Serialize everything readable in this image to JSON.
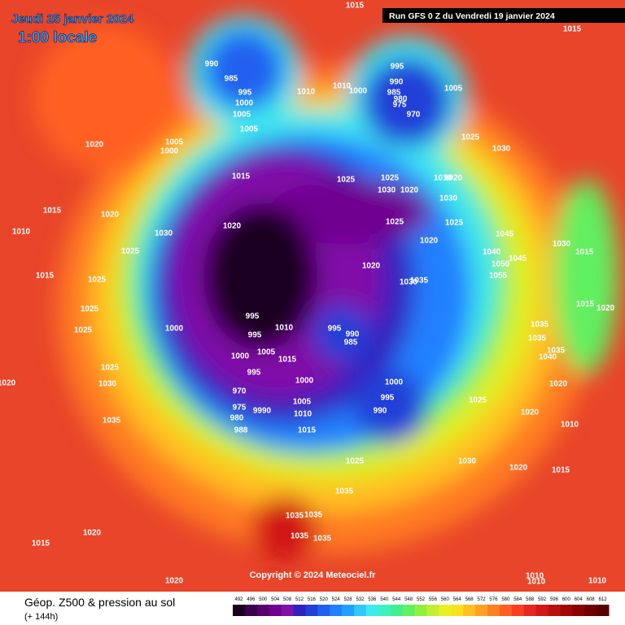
{
  "header": {
    "date": "Jeudi 25 janvier 2024",
    "time": "1:00 locale",
    "run": "Run GFS 0 Z du Vendredi 19 janvier 2024"
  },
  "copyright": "Copyright © 2024 Meteociel.fr",
  "footer": {
    "title": "Géop. Z500 & pression au sol",
    "lead": "(+ 144h)"
  },
  "legend": {
    "ticks": [
      492,
      496,
      500,
      504,
      508,
      512,
      516,
      520,
      524,
      528,
      532,
      536,
      540,
      544,
      548,
      552,
      556,
      560,
      564,
      568,
      572,
      576,
      580,
      584,
      588,
      592,
      596,
      600,
      604,
      608,
      612
    ],
    "colors": [
      "#1a0020",
      "#3a0050",
      "#560070",
      "#700090",
      "#8010a8",
      "#3020c0",
      "#2040d8",
      "#2060f0",
      "#2080ff",
      "#20a0ff",
      "#30c8ff",
      "#40e8f0",
      "#40f0c0",
      "#40f090",
      "#60f060",
      "#90f040",
      "#c0f030",
      "#e8f020",
      "#ffe020",
      "#ffc020",
      "#ffa020",
      "#ff8020",
      "#ff6020",
      "#f84020",
      "#e82820",
      "#d01818",
      "#b81010",
      "#a00808",
      "#880404",
      "#700000",
      "#580000"
    ]
  },
  "pressure_labels": [
    1015,
    1015,
    990,
    985,
    995,
    1000,
    1005,
    1005,
    1010,
    1010,
    1000,
    995,
    990,
    985,
    980,
    975,
    970,
    1005,
    1025,
    1030,
    1020,
    1005,
    1000,
    1015,
    1025,
    1025,
    1030,
    1020,
    1010,
    1020,
    1030,
    1015,
    1020,
    1010,
    1020,
    1030,
    1025,
    1025,
    1020,
    1045,
    1030,
    1015,
    1025,
    1040,
    1050,
    1045,
    1055,
    1020,
    1015,
    1025,
    1030,
    1035,
    1015,
    1020,
    1025,
    995,
    1035,
    1000,
    1010,
    995,
    990,
    985,
    1025,
    995,
    1035,
    1005,
    1035,
    1000,
    1015,
    1040,
    1025,
    995,
    1000,
    1000,
    1020,
    1030,
    1020,
    970,
    995,
    1005,
    1025,
    975,
    990,
    9990,
    1010,
    1020,
    980,
    1035,
    1010,
    988,
    1015,
    1025,
    1030,
    1020,
    1015,
    1035,
    1035,
    1035,
    1035,
    1035,
    1020,
    1015,
    1010,
    1010,
    1010,
    1020
  ]
}
